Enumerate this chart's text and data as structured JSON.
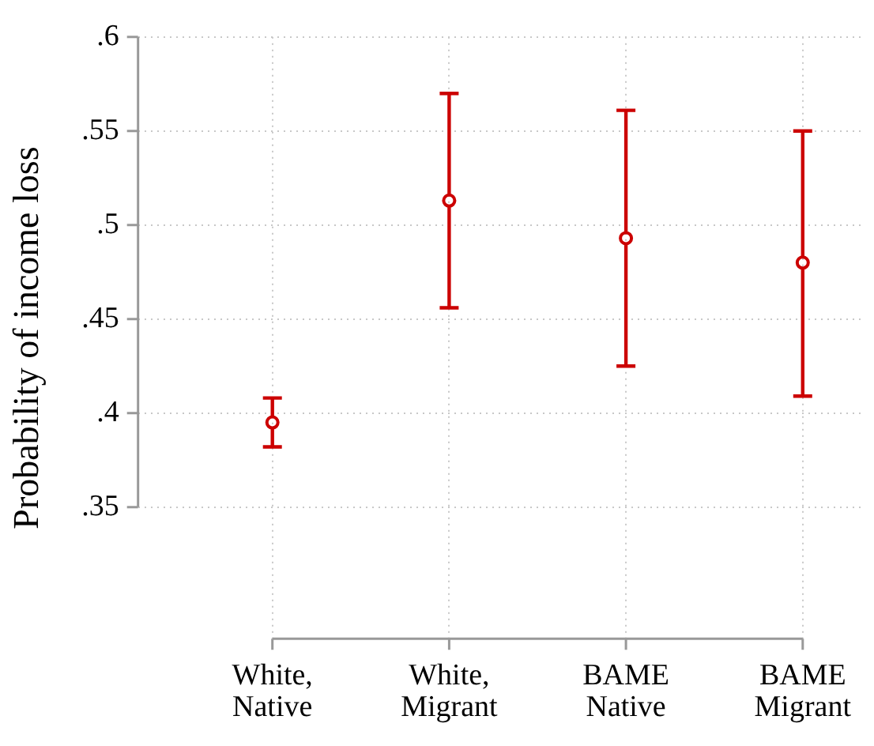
{
  "chart_data": {
    "type": "scatter",
    "ylabel": "Probability of income loss",
    "categories": [
      "White, Native",
      "White, Migrant",
      "BAME Native",
      "BAME Migrant"
    ],
    "values": [
      0.395,
      0.513,
      0.493,
      0.48
    ],
    "errors": [
      [
        0.382,
        0.408
      ],
      [
        0.456,
        0.57
      ],
      [
        0.425,
        0.561
      ],
      [
        0.409,
        0.55
      ]
    ],
    "color": "#cc0000",
    "marker": "circle",
    "ylim": [
      0.28,
      0.6
    ],
    "yticks": [
      {
        "value": 0.35,
        "label": ".35"
      },
      {
        "value": 0.4,
        "label": ".4"
      },
      {
        "value": 0.45,
        "label": ".45"
      },
      {
        "value": 0.5,
        "label": ".5"
      },
      {
        "value": 0.55,
        "label": ".55"
      },
      {
        "value": 0.6,
        "label": ".6"
      }
    ],
    "grid": true
  }
}
